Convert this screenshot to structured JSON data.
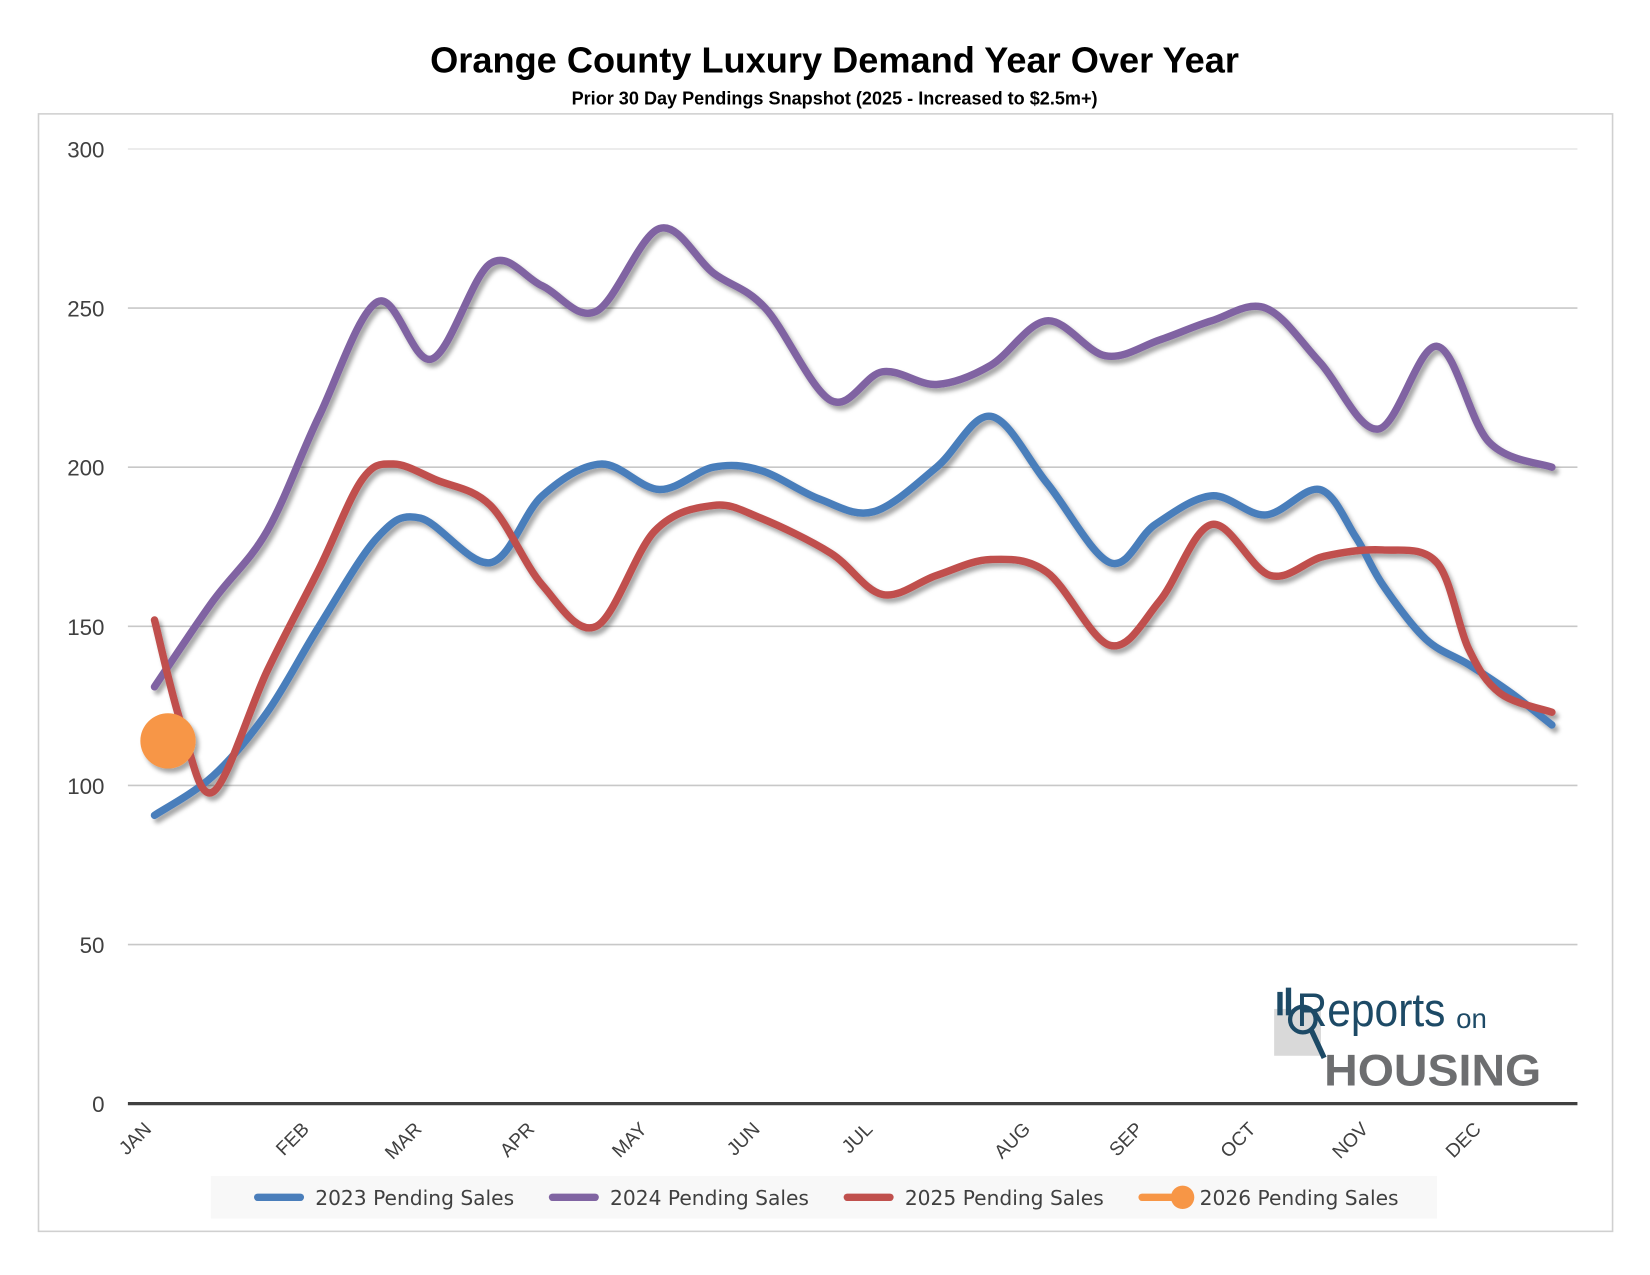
{
  "chart_data": {
    "type": "line",
    "title": "Orange County Luxury Demand Year Over Year",
    "subtitle": "Prior 30 Day Pendings Snapshot (2025 - Increased to $2.5m+)",
    "xlabel": "",
    "ylabel": "",
    "ylim": [
      0,
      300
    ],
    "yticks": [
      0,
      50,
      100,
      150,
      200,
      250,
      300
    ],
    "grid": true,
    "legend_position": "bottom",
    "x_axis": "weekly snapshots, Jan–Dec (x = snapshot index)",
    "xlim": [
      0,
      62
    ],
    "xtick_labels": [
      {
        "x": 0,
        "label": "JAN"
      },
      {
        "x": 7,
        "label": "FEB"
      },
      {
        "x": 12,
        "label": "MAR"
      },
      {
        "x": 17,
        "label": "APR"
      },
      {
        "x": 22,
        "label": "MAY"
      },
      {
        "x": 27,
        "label": "JUN"
      },
      {
        "x": 32,
        "label": "JUL"
      },
      {
        "x": 39,
        "label": "AUG"
      },
      {
        "x": 44,
        "label": "SEP"
      },
      {
        "x": 49,
        "label": "OCT"
      },
      {
        "x": 54,
        "label": "NOV"
      },
      {
        "x": 59,
        "label": "DEC"
      }
    ],
    "series": [
      {
        "name": "2023 Pending Sales",
        "color": "#4a7ebb",
        "points": [
          [
            0,
            90.6
          ],
          [
            2.6,
            103
          ],
          [
            5,
            123
          ],
          [
            7.3,
            150
          ],
          [
            9.9,
            178
          ],
          [
            11.8,
            184
          ],
          [
            14.9,
            170
          ],
          [
            17.2,
            191
          ],
          [
            19.8,
            201
          ],
          [
            22.4,
            193
          ],
          [
            24.8,
            200
          ],
          [
            26.9,
            199
          ],
          [
            29.5,
            190
          ],
          [
            31.9,
            186
          ],
          [
            34.7,
            200
          ],
          [
            37.1,
            216
          ],
          [
            39.6,
            195
          ],
          [
            42.4,
            170
          ],
          [
            44.4,
            182
          ],
          [
            46.9,
            191
          ],
          [
            49.3,
            185
          ],
          [
            51.7,
            193
          ],
          [
            53.3,
            178
          ],
          [
            54.5,
            163
          ],
          [
            56.4,
            146
          ],
          [
            58.3,
            138
          ],
          [
            60.2,
            129
          ],
          [
            62,
            119
          ]
        ]
      },
      {
        "name": "2024 Pending Sales",
        "color": "#8064a2",
        "points": [
          [
            0,
            131
          ],
          [
            2.6,
            158
          ],
          [
            5,
            180
          ],
          [
            7.3,
            216
          ],
          [
            9.9,
            252
          ],
          [
            12.3,
            234
          ],
          [
            14.9,
            264
          ],
          [
            17.2,
            257
          ],
          [
            19.6,
            249
          ],
          [
            22.4,
            275
          ],
          [
            24.8,
            261
          ],
          [
            27.1,
            250
          ],
          [
            30,
            221
          ],
          [
            32.3,
            230
          ],
          [
            34.7,
            226
          ],
          [
            37.1,
            232
          ],
          [
            39.6,
            246
          ],
          [
            42.2,
            235
          ],
          [
            44.6,
            240
          ],
          [
            46.9,
            246
          ],
          [
            49.3,
            250
          ],
          [
            51.7,
            233
          ],
          [
            54.3,
            212
          ],
          [
            56.9,
            238
          ],
          [
            59.2,
            208
          ],
          [
            62,
            200
          ]
        ]
      },
      {
        "name": "2025 Pending Sales",
        "color": "#c0504d",
        "points": [
          [
            0,
            152
          ],
          [
            1.2,
            119
          ],
          [
            2.6,
            98
          ],
          [
            5,
            136
          ],
          [
            7.3,
            168
          ],
          [
            9.2,
            196
          ],
          [
            10.6,
            201
          ],
          [
            12.5,
            196
          ],
          [
            14.9,
            188
          ],
          [
            17.2,
            163
          ],
          [
            19.6,
            150
          ],
          [
            22.2,
            180
          ],
          [
            24.8,
            188
          ],
          [
            26.9,
            184
          ],
          [
            30,
            173
          ],
          [
            32.3,
            160
          ],
          [
            34.7,
            166
          ],
          [
            37.1,
            171
          ],
          [
            39.6,
            167
          ],
          [
            42.4,
            144
          ],
          [
            44.6,
            158
          ],
          [
            46.9,
            182
          ],
          [
            49.5,
            166
          ],
          [
            51.9,
            172
          ],
          [
            54.5,
            174
          ],
          [
            56.9,
            170
          ],
          [
            58.3,
            143
          ],
          [
            59.7,
            129
          ],
          [
            62,
            123
          ]
        ]
      },
      {
        "name": "2026 Pending Sales",
        "color": "#f79646",
        "marker": "circle",
        "points": [
          [
            0.6,
            114
          ]
        ]
      }
    ]
  },
  "logo": {
    "word1": "Reports",
    "word2": "on",
    "word3": "HOUSING"
  }
}
